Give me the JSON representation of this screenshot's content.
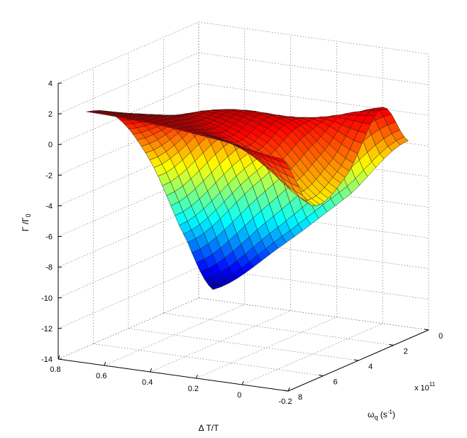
{
  "chart_data": {
    "type": "surface",
    "title": "",
    "xlabel": "ω_q (s⁻¹)",
    "xlabel_parts": {
      "main": "ω",
      "sub": "q",
      "rest": " (s",
      "sup": "-1",
      "close": ")"
    },
    "x_multiplier": {
      "base": "x 10",
      "exp": "11"
    },
    "ylabel": "Δ T/T",
    "zlabel_parts": {
      "main": "Γ /Γ",
      "sub": "0"
    },
    "xlim": [
      0,
      8
    ],
    "ylim": [
      -0.2,
      0.8
    ],
    "zlim": [
      -14,
      4
    ],
    "x_ticks": [
      0,
      2,
      4,
      6,
      8
    ],
    "x_tick_labels": [
      "0",
      "2",
      "4",
      "6",
      "8"
    ],
    "y_ticks": [
      0.8,
      0.6,
      0.4,
      0.2,
      0,
      -0.2
    ],
    "y_tick_labels": [
      "0.8",
      "0.6",
      "0.4",
      "0.2",
      "0",
      "-0.2"
    ],
    "z_ticks": [
      4,
      2,
      0,
      -2,
      -4,
      -6,
      -8,
      -10,
      -12,
      -14
    ],
    "z_tick_labels": [
      "4",
      "2",
      "0",
      "-2",
      "-4",
      "-6",
      "-8",
      "-10",
      "-12",
      "-14"
    ],
    "grid": true,
    "colormap": "jet",
    "colormap_stops": [
      "#00008f",
      "#0000ff",
      "#00ffff",
      "#ffff00",
      "#ff0000",
      "#800000"
    ],
    "surface_samples": {
      "x_grid": [
        0.5,
        2,
        4,
        6,
        7.7
      ],
      "y_grid": [
        0.7,
        0.4,
        0.1,
        -0.15
      ],
      "z_values": [
        [
          -13.0,
          -9.5,
          -5.5,
          -1.5
        ],
        [
          -9.0,
          -4.5,
          -0.3,
          1.4
        ],
        [
          -3.0,
          0.8,
          1.0,
          -2.0
        ],
        [
          1.0,
          1.6,
          0.0,
          -3.0
        ],
        [
          2.2,
          2.0,
          1.5,
          0.9
        ]
      ]
    }
  }
}
